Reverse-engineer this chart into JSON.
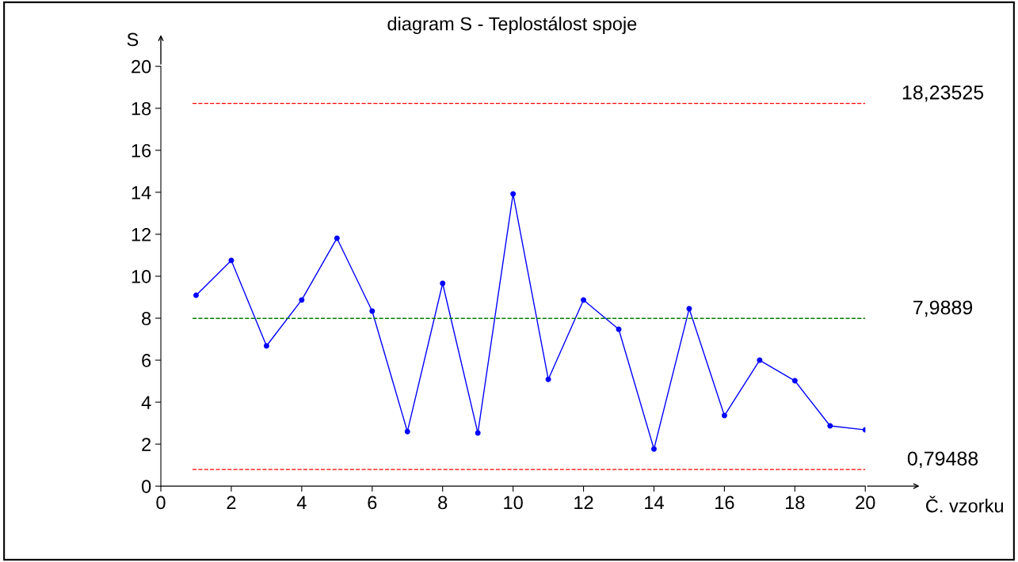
{
  "chart_data": {
    "type": "line",
    "title": "diagram S - Teplostálost spoje",
    "xlabel": "Č. vzorku",
    "ylabel": "S",
    "x": [
      1,
      2,
      3,
      4,
      5,
      6,
      7,
      8,
      9,
      10,
      11,
      12,
      13,
      14,
      15,
      16,
      17,
      18,
      19,
      20
    ],
    "series": [
      {
        "color": "#0000ff",
        "values": [
          9.09,
          10.75,
          6.68,
          8.87,
          11.81,
          8.34,
          2.6,
          9.66,
          2.53,
          13.92,
          5.09,
          8.87,
          7.47,
          1.77,
          8.45,
          3.36,
          6.0,
          5.02,
          2.87,
          2.68
        ]
      }
    ],
    "xlim": [
      0,
      20
    ],
    "xticks": [
      0,
      2,
      4,
      6,
      8,
      10,
      12,
      14,
      16,
      18,
      20
    ],
    "ylim": [
      0,
      20
    ],
    "yticks": [
      0,
      2,
      4,
      6,
      8,
      10,
      12,
      14,
      16,
      18,
      20
    ],
    "ref_lines": [
      {
        "axis": "y",
        "value": 18.23525,
        "label": "18,23525",
        "color": "#ff0000",
        "line_style": "dashed"
      },
      {
        "axis": "y",
        "value": 7.9889,
        "label": "7,9889",
        "color": "#008000",
        "line_style": "dashed"
      },
      {
        "axis": "y",
        "value": 0.79488,
        "label": "0,79488",
        "color": "#ff0000",
        "line_style": "dashed"
      }
    ],
    "grid": false,
    "legend": false,
    "marker": "circle",
    "line_style": "solid"
  }
}
